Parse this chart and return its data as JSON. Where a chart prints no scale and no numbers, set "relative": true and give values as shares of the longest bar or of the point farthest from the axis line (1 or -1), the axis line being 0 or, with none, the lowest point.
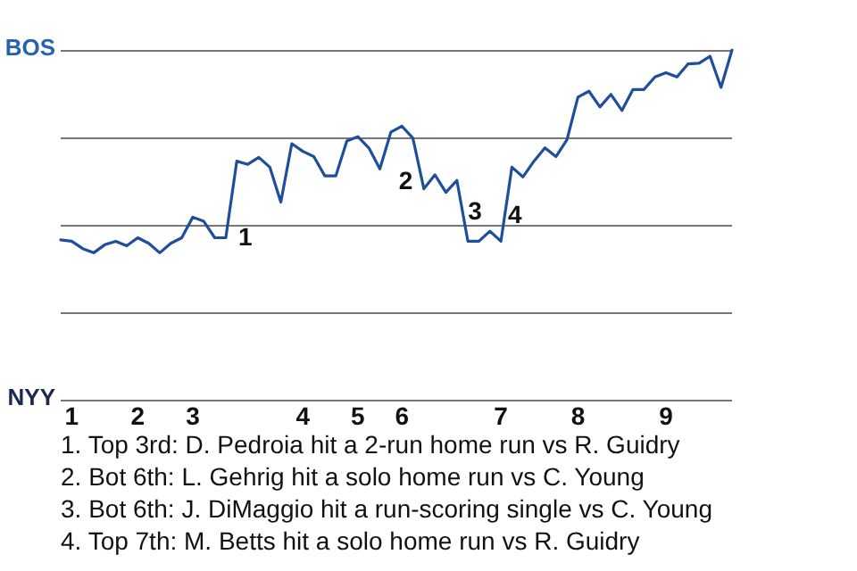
{
  "chart_data": {
    "type": "line",
    "categories": [
      null,
      "1",
      null,
      null,
      null,
      null,
      null,
      "2",
      null,
      null,
      null,
      null,
      "3",
      null,
      null,
      null,
      null,
      null,
      null,
      null,
      null,
      null,
      "4",
      null,
      null,
      null,
      null,
      "5",
      null,
      null,
      null,
      "6",
      null,
      null,
      null,
      null,
      null,
      null,
      null,
      null,
      "7",
      null,
      null,
      null,
      null,
      null,
      null,
      "8",
      null,
      null,
      null,
      null,
      null,
      null,
      null,
      "9",
      null,
      null,
      null,
      null,
      null,
      null
    ],
    "relative": true,
    "series": [
      {
        "color": "#1d4f9c",
        "values": [
          0.457,
          0.453,
          0.432,
          0.42,
          0.443,
          0.453,
          0.44,
          0.463,
          0.447,
          0.42,
          0.447,
          0.463,
          0.522,
          0.51,
          0.463,
          0.463,
          0.682,
          0.673,
          0.693,
          0.665,
          0.565,
          0.732,
          0.71,
          0.695,
          0.64,
          0.64,
          0.74,
          0.752,
          0.72,
          0.66,
          0.765,
          0.782,
          0.748,
          0.603,
          0.643,
          0.593,
          0.627,
          0.453,
          0.453,
          0.482,
          0.453,
          0.665,
          0.637,
          0.682,
          0.72,
          0.695,
          0.743,
          0.865,
          0.882,
          0.837,
          0.873,
          0.827,
          0.887,
          0.887,
          0.923,
          0.935,
          0.923,
          0.96,
          0.962,
          0.982,
          0.893,
          1
        ]
      }
    ],
    "grid": "y",
    "marker": "none",
    "line_style": "solid",
    "annotations": [
      "BOS",
      "NYY",
      "1",
      "2",
      "3",
      "4",
      "1. Top 3rd: D. Pedroia hit a 2-run home run vs R. Guidry",
      "2. Bot 6th: L. Gehrig hit a solo home run vs C. Young",
      "3. Bot 6th: J. DiMaggio hit a run-scoring single vs C. Young",
      "4. Top 7th: M. Betts hit a solo home run vs R. Guidry"
    ]
  }
}
